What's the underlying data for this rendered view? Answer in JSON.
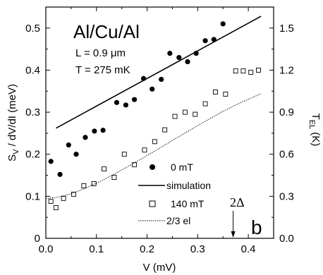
{
  "chart_data": {
    "type": "scatter",
    "title": "Al/Cu/Al",
    "annotations": {
      "length": "L = 0.9  μm",
      "temperature": "T = 275 mK",
      "gap_marker": "2Δ",
      "gap_marker_x": 0.37,
      "panel_label": "b"
    },
    "xlabel": "V (mV)",
    "ylabel_left": "S",
    "ylabel_left_sub": "V",
    "ylabel_left_rest": " / dV/dI (meV)",
    "ylabel_right": "T",
    "ylabel_right_sub": "EL",
    "ylabel_right_rest": " (K)",
    "xlim": [
      0.0,
      0.45
    ],
    "ylim_left": [
      0.0,
      0.55
    ],
    "ylim_right": [
      0.0,
      1.65
    ],
    "x_ticks": [
      "0.0",
      "0.1",
      "0.2",
      "0.3",
      "0.4"
    ],
    "x_tick_values": [
      0.0,
      0.1,
      0.2,
      0.3,
      0.4
    ],
    "y_left_ticks": [
      "0",
      "0.1",
      "0.2",
      "0.3",
      "0.4",
      "0.5"
    ],
    "y_left_tick_values": [
      0,
      0.1,
      0.2,
      0.3,
      0.4,
      0.5
    ],
    "y_right_ticks": [
      "0.0",
      "0.3",
      "0.6",
      "0.9",
      "1.2",
      "1.5"
    ],
    "y_right_tick_values": [
      0.0,
      0.3,
      0.6,
      0.9,
      1.2,
      1.5
    ],
    "grid": false,
    "legend_position": "bottom-center",
    "series": [
      {
        "name": "0 mT",
        "kind": "scatter-filled-circle",
        "x": [
          0.01,
          0.028,
          0.045,
          0.06,
          0.078,
          0.096,
          0.113,
          0.14,
          0.158,
          0.175,
          0.193,
          0.21,
          0.228,
          0.245,
          0.263,
          0.28,
          0.297,
          0.315,
          0.332,
          0.35
        ],
        "y": [
          0.183,
          0.152,
          0.222,
          0.2,
          0.24,
          0.255,
          0.257,
          0.323,
          0.317,
          0.33,
          0.38,
          0.355,
          0.378,
          0.44,
          0.43,
          0.42,
          0.44,
          0.47,
          0.473,
          0.51
        ]
      },
      {
        "name": "simulation",
        "kind": "line-solid",
        "x": [
          0.02,
          0.425
        ],
        "y": [
          0.262,
          0.528
        ]
      },
      {
        "name": "140 mT",
        "kind": "scatter-open-square",
        "x": [
          0.01,
          0.02,
          0.035,
          0.055,
          0.075,
          0.095,
          0.115,
          0.135,
          0.155,
          0.175,
          0.195,
          0.215,
          0.235,
          0.255,
          0.275,
          0.295,
          0.315,
          0.335,
          0.355,
          0.375,
          0.39,
          0.405,
          0.42
        ],
        "y": [
          0.088,
          0.073,
          0.095,
          0.105,
          0.125,
          0.13,
          0.165,
          0.145,
          0.2,
          0.175,
          0.21,
          0.23,
          0.258,
          0.29,
          0.3,
          0.295,
          0.32,
          0.348,
          0.343,
          0.398,
          0.398,
          0.395,
          0.4
        ]
      },
      {
        "name": "2/3 el",
        "kind": "line-dotted",
        "x": [
          0.0,
          0.02,
          0.05,
          0.08,
          0.11,
          0.14,
          0.17,
          0.2,
          0.23,
          0.26,
          0.29,
          0.32,
          0.35,
          0.38,
          0.41,
          0.425
        ],
        "y": [
          0.095,
          0.097,
          0.106,
          0.12,
          0.137,
          0.156,
          0.176,
          0.197,
          0.218,
          0.24,
          0.261,
          0.282,
          0.302,
          0.32,
          0.336,
          0.344
        ]
      }
    ]
  }
}
